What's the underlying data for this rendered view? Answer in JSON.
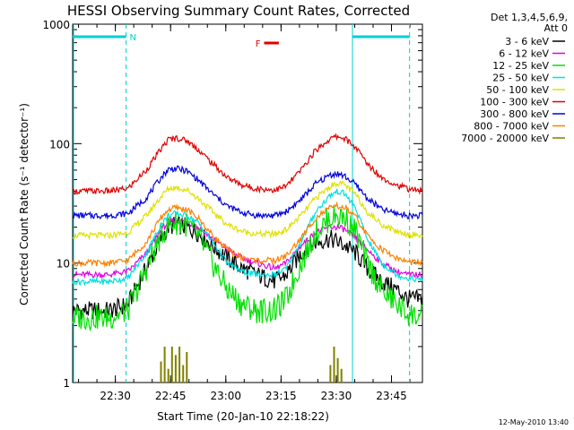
{
  "chart_data": {
    "type": "line",
    "title": "HESSI Observing Summary Count Rates, Corrected",
    "xlabel": "Start Time (20-Jan-10 22:18:22)",
    "ylabel": "Corrected Count Rate (s⁻¹ detector⁻¹)",
    "x_unit": "minutes after 22:18:22",
    "xlim": [
      0,
      95
    ],
    "ylim": [
      1,
      1000
    ],
    "yscale": "log",
    "grid": false,
    "x_ticks": [
      {
        "value": 11.6,
        "label": "22:30"
      },
      {
        "value": 26.6,
        "label": "22:45"
      },
      {
        "value": 41.6,
        "label": "23:00"
      },
      {
        "value": 56.6,
        "label": "23:15"
      },
      {
        "value": 71.6,
        "label": "23:30"
      },
      {
        "value": 86.6,
        "label": "23:45"
      }
    ],
    "y_ticks": [
      {
        "value": 1,
        "label": "1"
      },
      {
        "value": 10,
        "label": "10"
      },
      {
        "value": 100,
        "label": "100"
      },
      {
        "value": 1000,
        "label": "1000"
      }
    ],
    "legend": {
      "position": "right",
      "header": [
        "Det 1,3,4,5,6,9,",
        "Att 0"
      ]
    },
    "series": [
      {
        "name": "3 - 6 keV",
        "color": "#000000",
        "x": [
          0,
          10,
          15,
          20,
          24,
          26,
          28,
          31,
          34,
          38,
          42,
          46,
          50,
          55,
          58,
          62,
          66,
          70,
          72,
          74,
          77,
          80,
          84,
          88,
          91,
          95
        ],
        "y": [
          4,
          4,
          4.5,
          9,
          16,
          20,
          21,
          20,
          18,
          14,
          11,
          9,
          8,
          7,
          8,
          12,
          15,
          16,
          15,
          14,
          12,
          9,
          7,
          6,
          5,
          5
        ]
      },
      {
        "name": "6 - 12 keV",
        "color": "#e000e0",
        "x": [
          0,
          10,
          15,
          20,
          24,
          26,
          28,
          31,
          34,
          38,
          42,
          46,
          50,
          55,
          58,
          62,
          66,
          70,
          72,
          74,
          77,
          80,
          84,
          88,
          91,
          95
        ],
        "y": [
          8,
          8,
          8.5,
          12,
          19,
          22,
          23,
          22,
          20,
          16,
          13,
          11,
          10,
          9,
          10,
          14,
          18,
          20,
          20,
          19,
          16,
          13,
          10,
          8.5,
          8,
          8
        ]
      },
      {
        "name": "12 - 25 keV",
        "color": "#00e000",
        "x": [
          0,
          10,
          15,
          20,
          24,
          26,
          28,
          31,
          34,
          38,
          42,
          46,
          50,
          55,
          58,
          62,
          66,
          70,
          72,
          74,
          77,
          80,
          84,
          88,
          91,
          95
        ],
        "y": [
          3.5,
          3.5,
          4,
          9,
          17,
          21,
          22,
          21,
          17,
          10,
          6,
          4.5,
          4,
          4,
          5,
          10,
          18,
          24,
          25,
          24,
          18,
          10,
          6,
          4.5,
          3.8,
          3.5
        ]
      },
      {
        "name": "25 - 50 keV",
        "color": "#00e0e0",
        "x": [
          0,
          10,
          15,
          20,
          24,
          26,
          28,
          31,
          34,
          38,
          42,
          46,
          50,
          55,
          58,
          62,
          66,
          70,
          72,
          74,
          77,
          80,
          84,
          88,
          91,
          95
        ],
        "y": [
          7,
          7,
          7.5,
          12,
          21,
          25,
          26,
          25,
          22,
          15,
          10,
          8.5,
          8,
          8,
          9,
          15,
          27,
          37,
          40,
          38,
          28,
          16,
          10,
          8,
          7.5,
          7.2
        ]
      },
      {
        "name": "50 - 100 keV",
        "color": "#e0e000",
        "x": [
          0,
          10,
          15,
          20,
          24,
          26,
          28,
          31,
          34,
          38,
          42,
          46,
          50,
          55,
          58,
          62,
          66,
          70,
          72,
          74,
          77,
          80,
          84,
          88,
          91,
          95
        ],
        "y": [
          17,
          17,
          18,
          25,
          36,
          42,
          43,
          41,
          35,
          27,
          21,
          18.5,
          17.5,
          17.5,
          19,
          25,
          35,
          44,
          47,
          45,
          37,
          27,
          21,
          18.5,
          17.5,
          17
        ]
      },
      {
        "name": "100 - 300 keV",
        "color": "#e00000",
        "x": [
          0,
          10,
          15,
          20,
          24,
          26,
          28,
          31,
          34,
          38,
          42,
          46,
          50,
          55,
          58,
          62,
          66,
          70,
          72,
          74,
          77,
          80,
          84,
          88,
          91,
          95
        ],
        "y": [
          40,
          40,
          42,
          60,
          90,
          108,
          112,
          106,
          90,
          68,
          52,
          45,
          42,
          41,
          44,
          60,
          88,
          110,
          115,
          110,
          92,
          68,
          52,
          45,
          42,
          40
        ]
      },
      {
        "name": "300 - 800 keV",
        "color": "#0000e0",
        "x": [
          0,
          10,
          15,
          20,
          24,
          26,
          28,
          31,
          34,
          38,
          42,
          46,
          50,
          55,
          58,
          62,
          66,
          70,
          72,
          74,
          77,
          80,
          84,
          88,
          91,
          95
        ],
        "y": [
          25,
          25,
          26,
          35,
          52,
          61,
          62,
          59,
          50,
          38,
          30,
          26.5,
          25,
          25,
          27,
          34,
          46,
          55,
          56,
          53,
          45,
          35,
          28,
          26,
          25,
          25
        ]
      },
      {
        "name": "800 - 7000 keV",
        "color": "#ff8000",
        "x": [
          0,
          10,
          15,
          20,
          24,
          26,
          28,
          31,
          34,
          38,
          42,
          46,
          50,
          55,
          58,
          62,
          66,
          70,
          72,
          74,
          77,
          80,
          84,
          88,
          91,
          95
        ],
        "y": [
          10,
          10,
          10.5,
          15,
          24,
          28,
          29,
          28,
          24,
          17,
          13,
          11,
          10.5,
          10.5,
          11.5,
          16,
          24,
          29,
          30,
          29,
          24,
          17,
          13,
          11,
          10.2,
          10
        ]
      },
      {
        "name": "7000 - 20000 keV",
        "color": "#808000",
        "x": [
          24,
          25,
          26,
          27,
          28,
          29,
          30,
          31,
          70,
          71,
          72,
          73
        ],
        "y": [
          1.5,
          2,
          1.3,
          2,
          1.7,
          2,
          1.4,
          1.8,
          1.4,
          2,
          1.6,
          1.3
        ]
      }
    ],
    "annotations": [
      {
        "label": "N",
        "color": "#00d0d0",
        "x_start": 0,
        "x_end": 14.5
      },
      {
        "label": "F",
        "color": "#e00000",
        "x_start": 52,
        "x_end": 56
      },
      {
        "label": "",
        "color": "#00d0d0",
        "x_start": 76,
        "x_end": 91.5
      }
    ],
    "vertical_lines": [
      {
        "x": 14.5,
        "style": "dashed",
        "color": "#00d0d0"
      },
      {
        "x": 76,
        "style": "solid",
        "color": "#00d0d0"
      },
      {
        "x": 91.5,
        "style": "dashed",
        "color": "#00d0d0"
      }
    ],
    "timestamp": "12-May-2010 13:40"
  }
}
